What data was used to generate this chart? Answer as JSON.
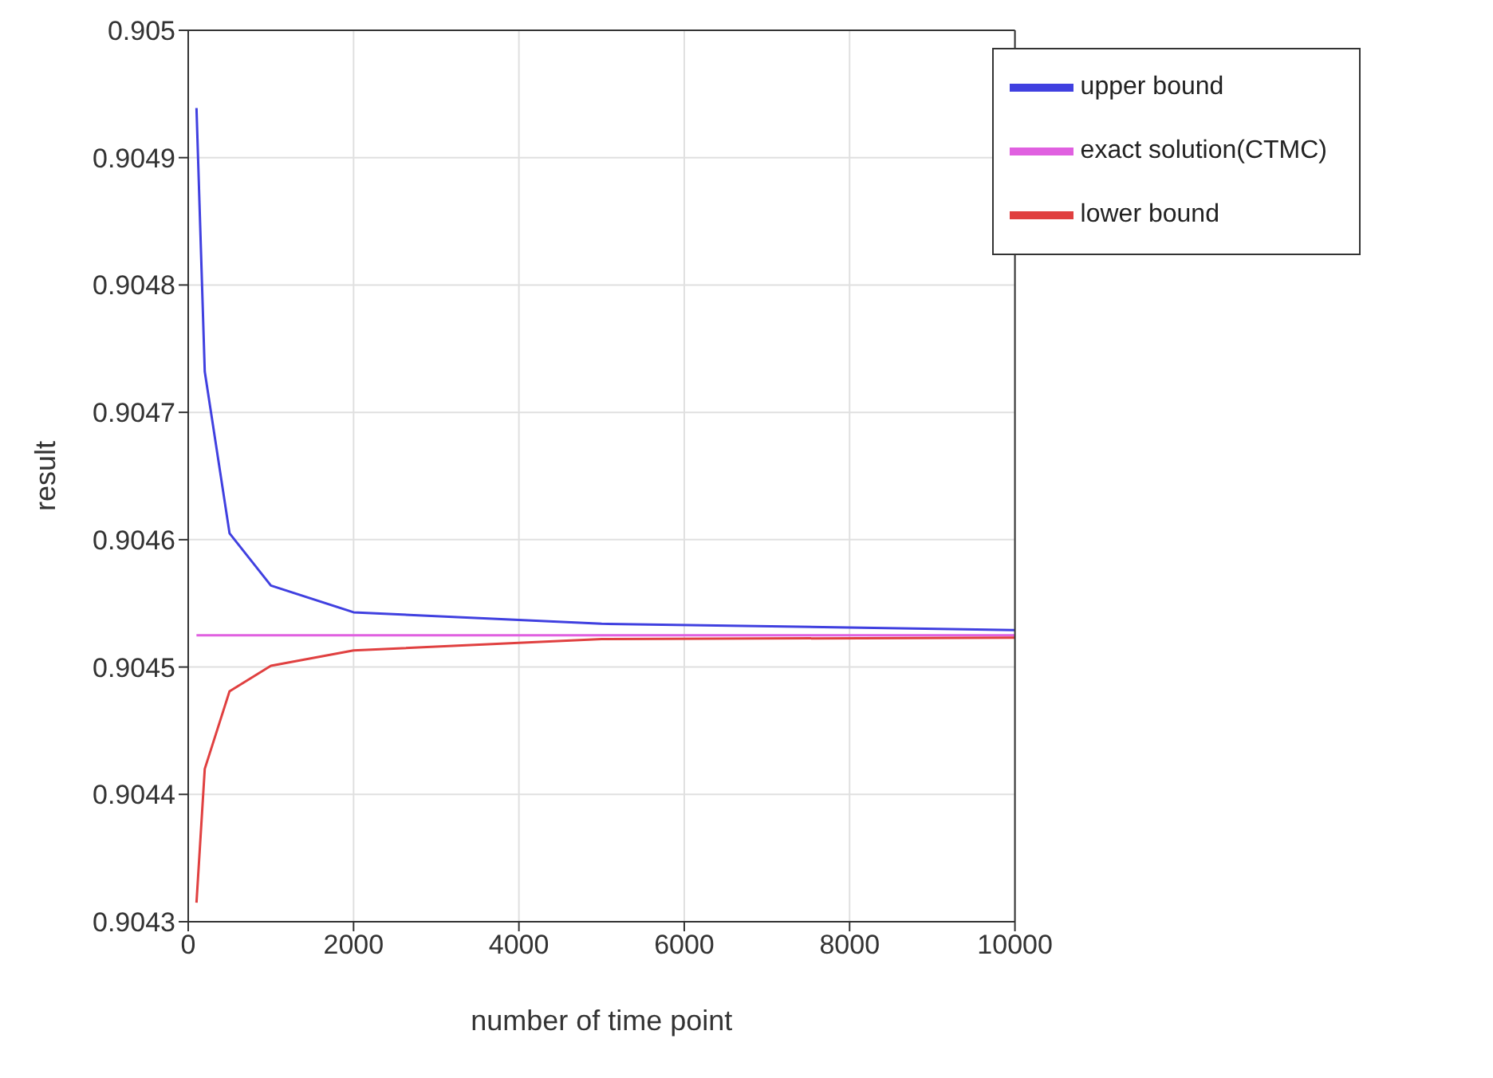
{
  "chart_data": {
    "type": "line",
    "xlabel": "number of time point",
    "ylabel": "result",
    "x": [
      100,
      200,
      500,
      1000,
      2000,
      5000,
      10000
    ],
    "series": [
      {
        "name": "upper bound",
        "color": "#4040e0",
        "values": [
          0.904939,
          0.904732,
          0.904605,
          0.904564,
          0.904543,
          0.904534,
          0.904529
        ]
      },
      {
        "name": "exact solution(CTMC)",
        "color": "#e060e0",
        "values": [
          0.904525,
          0.904525,
          0.904525,
          0.904525,
          0.904525,
          0.904525,
          0.904525
        ]
      },
      {
        "name": "lower bound",
        "color": "#e04040",
        "values": [
          0.904315,
          0.90442,
          0.904481,
          0.904501,
          0.904513,
          0.904522,
          0.904523
        ]
      }
    ],
    "xlim": [
      0,
      10000
    ],
    "xticks": [
      0,
      2000,
      4000,
      6000,
      8000,
      10000
    ],
    "ylim": [
      0.9043,
      0.905
    ],
    "yticks": [
      0.9043,
      0.9044,
      0.9045,
      0.9046,
      0.9047,
      0.9048,
      0.9049,
      0.905
    ],
    "grid": true,
    "legend": "top right",
    "marker": "none",
    "line_style": "solid"
  }
}
